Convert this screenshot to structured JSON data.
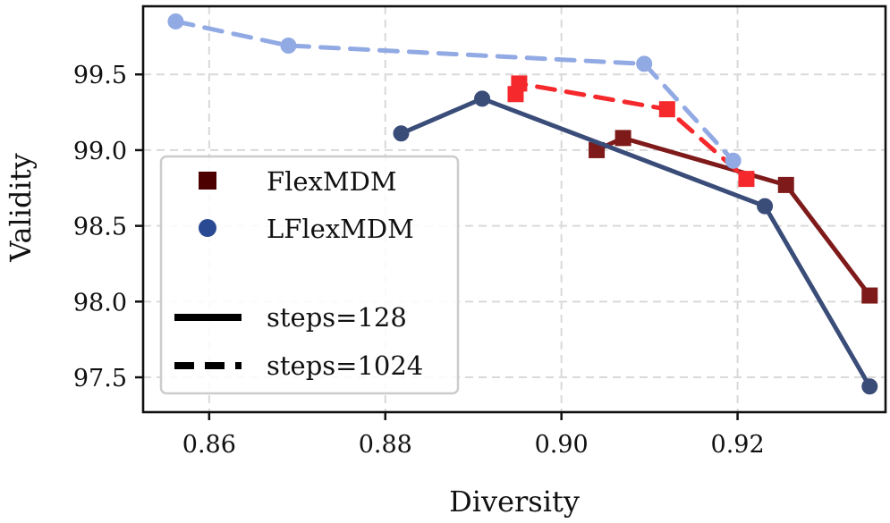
{
  "chart_data": {
    "type": "line",
    "title": "",
    "xlabel": "Diversity",
    "ylabel": "Validity",
    "xlim": [
      0.8525,
      0.9368
    ],
    "ylim": [
      97.27,
      99.95
    ],
    "xticks": [
      0.86,
      0.88,
      0.9,
      0.92
    ],
    "xtick_labels": [
      "0.86",
      "0.88",
      "0.90",
      "0.92"
    ],
    "yticks": [
      97.5,
      98.0,
      98.5,
      99.0,
      99.5
    ],
    "ytick_labels": [
      "97.5",
      "98.0",
      "98.5",
      "99.0",
      "99.5"
    ],
    "grid": true,
    "legend_position": "center-left",
    "legend": {
      "models": [
        {
          "label": "FlexMDM",
          "marker": "square",
          "color": "#4d0000"
        },
        {
          "label": "LFlexMDM",
          "marker": "circle",
          "color": "#2a4a94"
        }
      ],
      "styles": [
        {
          "label": "steps=128",
          "line": "solid"
        },
        {
          "label": "steps=1024",
          "line": "dashed"
        }
      ]
    },
    "series": [
      {
        "name": "FlexMDM steps=128",
        "model": "FlexMDM",
        "steps": 128,
        "color": "#7f1a1a",
        "marker": "square",
        "line": "solid",
        "points": [
          [
            0.904,
            99.0
          ],
          [
            0.907,
            99.08
          ],
          [
            0.9255,
            98.77
          ],
          [
            0.935,
            98.04
          ]
        ]
      },
      {
        "name": "FlexMDM steps=1024",
        "model": "FlexMDM",
        "steps": 1024,
        "color": "#f5282c",
        "marker": "square",
        "line": "dashed",
        "points": [
          [
            0.8948,
            99.37
          ],
          [
            0.8952,
            99.44
          ],
          [
            0.912,
            99.27
          ],
          [
            0.921,
            98.81
          ]
        ]
      },
      {
        "name": "LFlexMDM steps=128",
        "model": "LFlexMDM",
        "steps": 128,
        "color": "#3a4c78",
        "marker": "circle",
        "line": "solid",
        "points": [
          [
            0.8818,
            99.11
          ],
          [
            0.891,
            99.34
          ],
          [
            0.9231,
            98.63
          ],
          [
            0.935,
            97.44
          ]
        ]
      },
      {
        "name": "LFlexMDM steps=1024",
        "model": "LFlexMDM",
        "steps": 1024,
        "color": "#92aae4",
        "marker": "circle",
        "line": "dashed",
        "points": [
          [
            0.8562,
            99.85
          ],
          [
            0.869,
            99.69
          ],
          [
            0.9094,
            99.57
          ],
          [
            0.9195,
            98.93
          ]
        ]
      }
    ]
  }
}
